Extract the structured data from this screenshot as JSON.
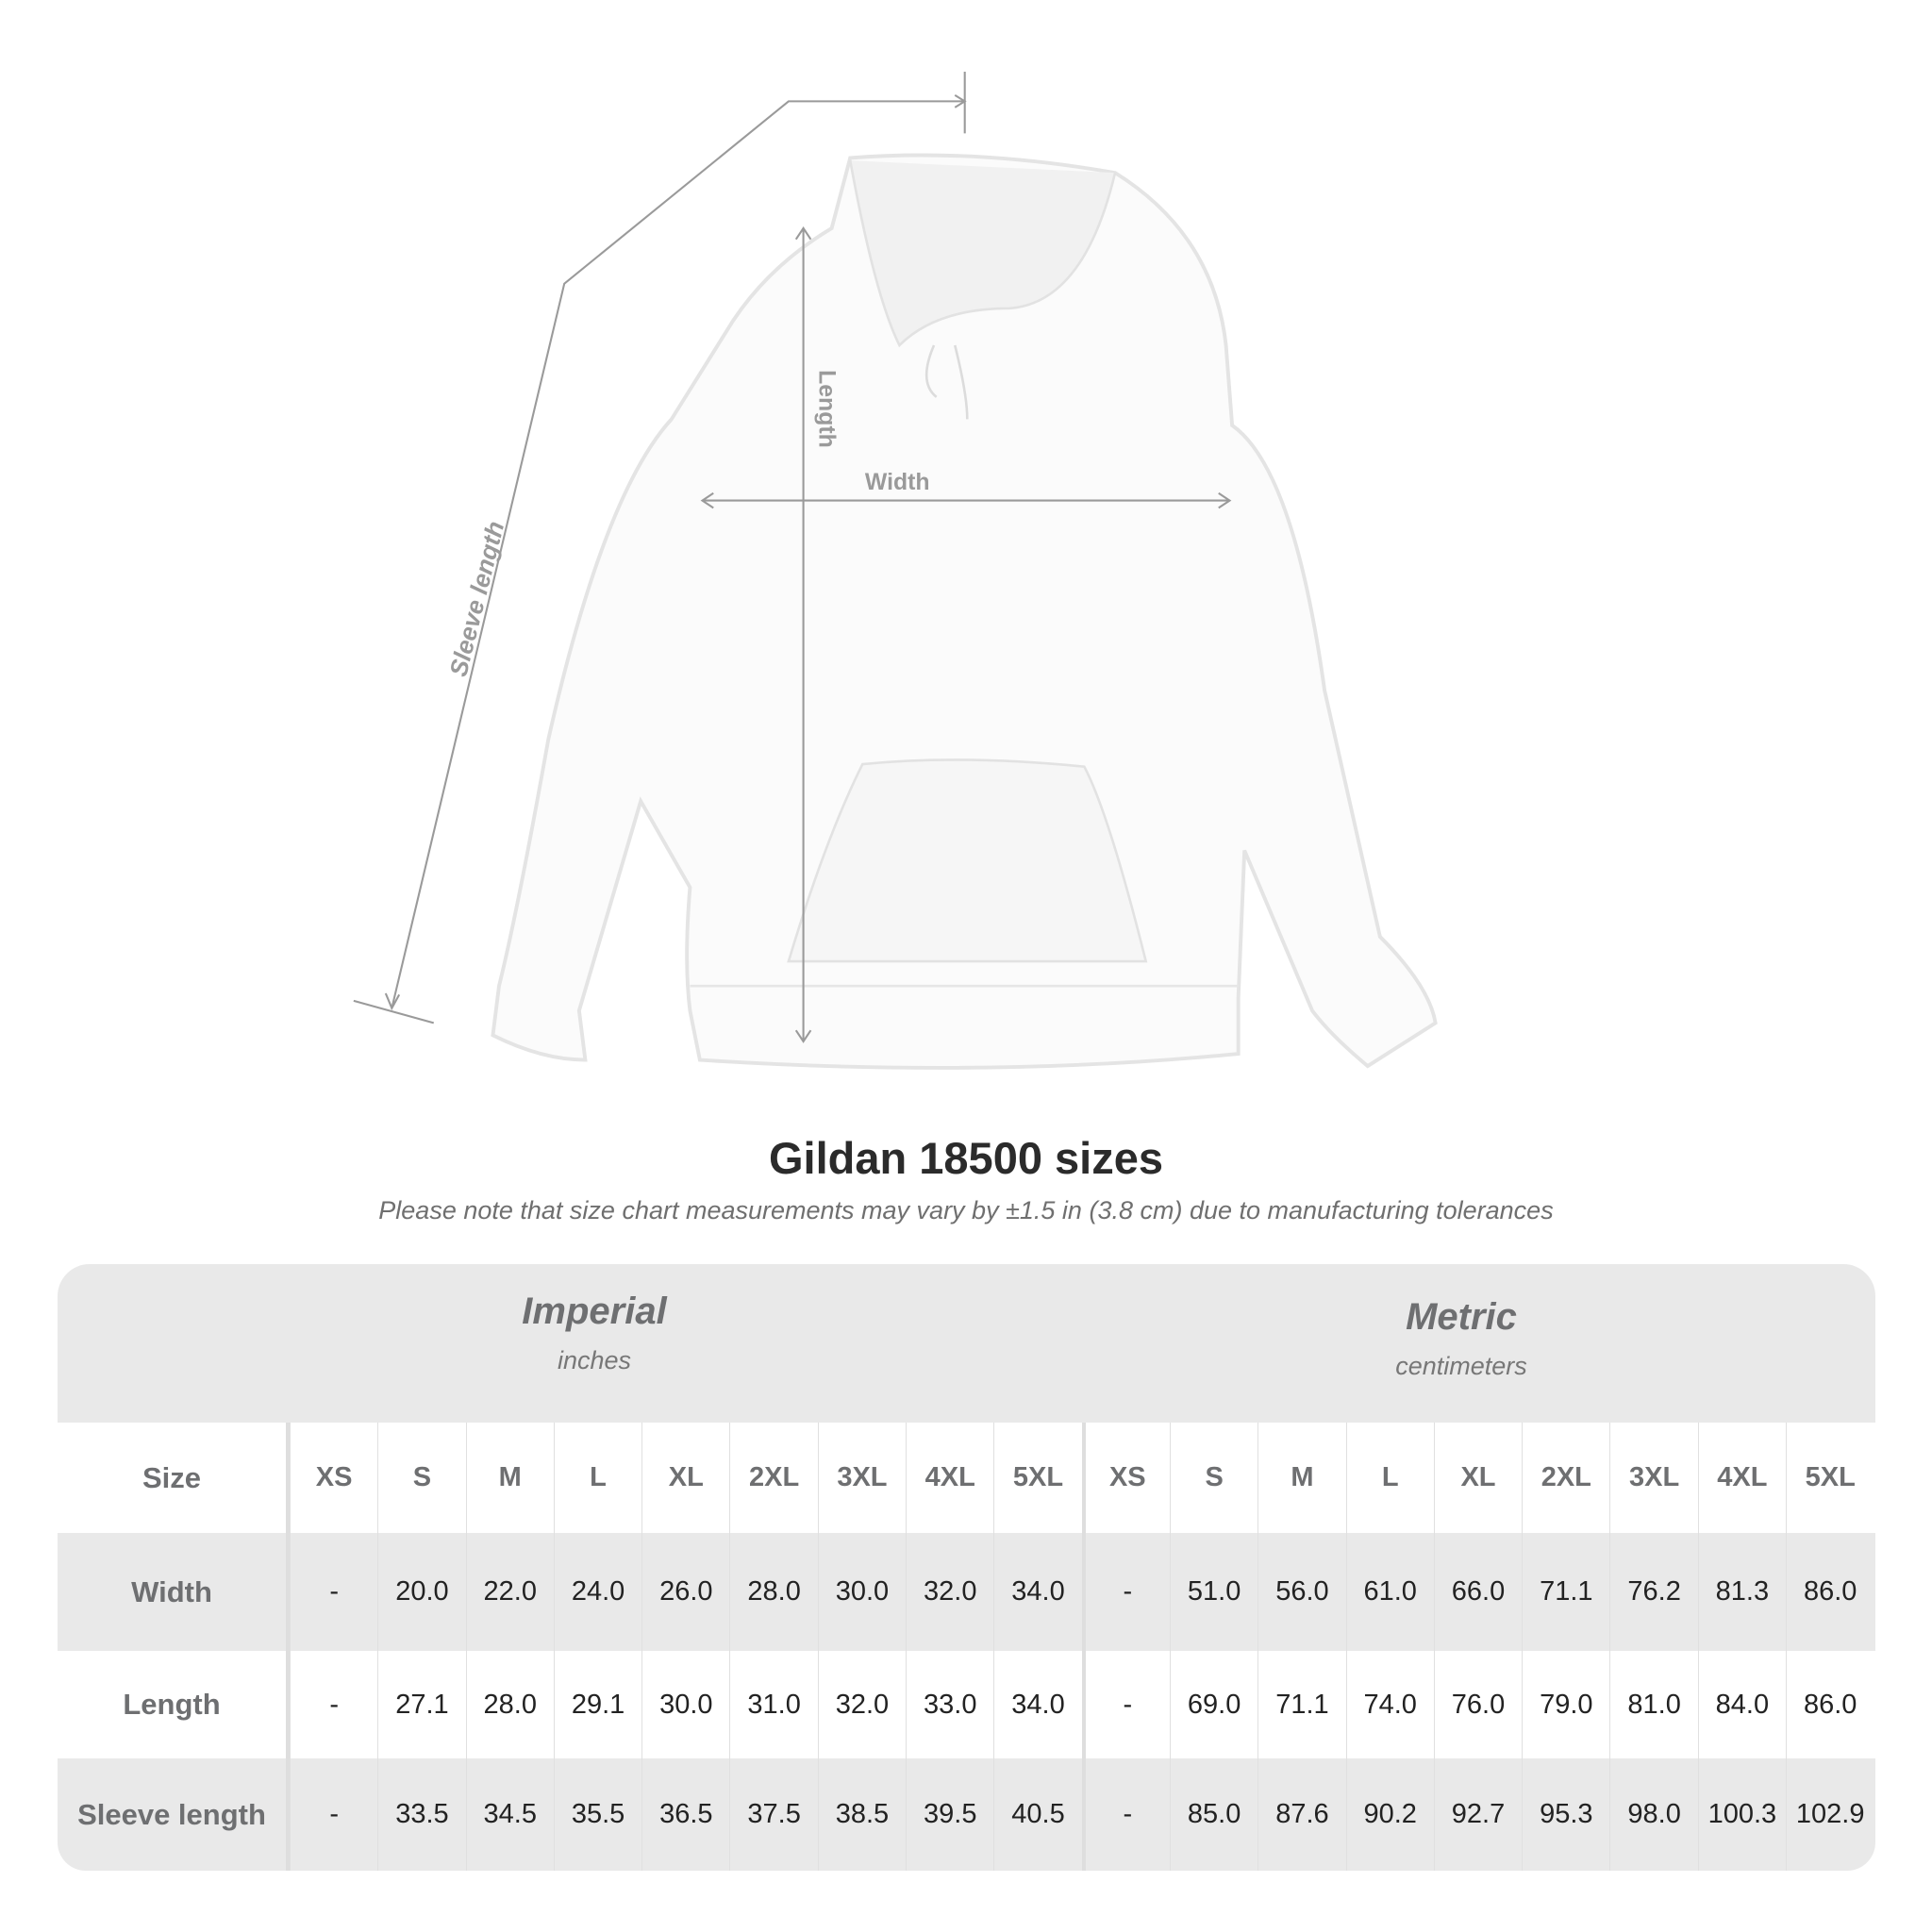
{
  "figure": {
    "labels": {
      "sleeve": "Sleeve length",
      "length": "Length",
      "width": "Width"
    }
  },
  "title": "Gildan 18500 sizes",
  "note": "Please note that size chart measurements may vary by ±1.5 in (3.8 cm) due to manufacturing tolerances",
  "table": {
    "imperial": {
      "name": "Imperial",
      "unit": "inches"
    },
    "metric": {
      "name": "Metric",
      "unit": "centimeters"
    },
    "size_label": "Size",
    "sizes": [
      "XS",
      "S",
      "M",
      "L",
      "XL",
      "2XL",
      "3XL",
      "4XL",
      "5XL"
    ],
    "rows": [
      {
        "label": "Width",
        "imperial": [
          "-",
          "20.0",
          "22.0",
          "24.0",
          "26.0",
          "28.0",
          "30.0",
          "32.0",
          "34.0"
        ],
        "metric": [
          "-",
          "51.0",
          "56.0",
          "61.0",
          "66.0",
          "71.1",
          "76.2",
          "81.3",
          "86.0"
        ]
      },
      {
        "label": "Length",
        "imperial": [
          "-",
          "27.1",
          "28.0",
          "29.1",
          "30.0",
          "31.0",
          "32.0",
          "33.0",
          "34.0"
        ],
        "metric": [
          "-",
          "69.0",
          "71.1",
          "74.0",
          "76.0",
          "79.0",
          "81.0",
          "84.0",
          "86.0"
        ]
      },
      {
        "label": "Sleeve length",
        "imperial": [
          "-",
          "33.5",
          "34.5",
          "35.5",
          "36.5",
          "37.5",
          "38.5",
          "39.5",
          "40.5"
        ],
        "metric": [
          "-",
          "85.0",
          "87.6",
          "90.2",
          "92.7",
          "95.3",
          "98.0",
          "100.3",
          "102.9"
        ]
      }
    ]
  },
  "colors": {
    "band": "#e9e9e9",
    "header_text": "#6e6f71",
    "measure_line": "#9a9a9a"
  }
}
